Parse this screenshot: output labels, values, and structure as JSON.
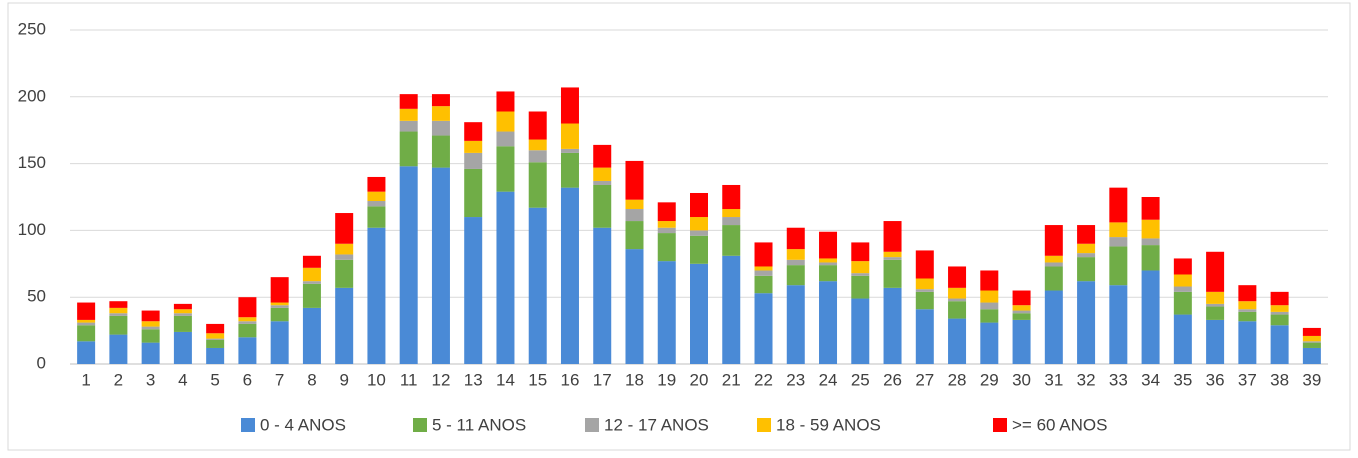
{
  "chart_data": {
    "type": "stacked_bar",
    "categories": [
      1,
      2,
      3,
      4,
      5,
      6,
      7,
      8,
      9,
      10,
      11,
      12,
      13,
      14,
      15,
      16,
      17,
      18,
      19,
      20,
      21,
      22,
      23,
      24,
      25,
      26,
      27,
      28,
      29,
      30,
      31,
      32,
      33,
      34,
      35,
      36,
      37,
      38,
      39
    ],
    "series": [
      {
        "name": "0 - 4 ANOS",
        "color": "#4a8ad6",
        "values": [
          17,
          22,
          16,
          24,
          12,
          20,
          32,
          42,
          57,
          102,
          148,
          147,
          110,
          129,
          117,
          132,
          102,
          86,
          77,
          75,
          81,
          53,
          59,
          62,
          49,
          57,
          41,
          34,
          31,
          33,
          55,
          62,
          59,
          70,
          37,
          33,
          32,
          29,
          12
        ]
      },
      {
        "name": "5 - 11 ANOS",
        "color": "#70ad47",
        "values": [
          12,
          14,
          10,
          12,
          6,
          10,
          10,
          18,
          21,
          16,
          26,
          24,
          36,
          34,
          34,
          26,
          32,
          21,
          21,
          21,
          23,
          13,
          15,
          12,
          17,
          21,
          13,
          13,
          10,
          5,
          18,
          18,
          29,
          19,
          17,
          10,
          7,
          8,
          4
        ]
      },
      {
        "name": "12 - 17 ANOS",
        "color": "#a5a5a5",
        "values": [
          2,
          2,
          2,
          2,
          1,
          2,
          2,
          2,
          4,
          4,
          8,
          11,
          12,
          11,
          9,
          3,
          3,
          9,
          4,
          4,
          6,
          4,
          4,
          2,
          2,
          2,
          2,
          2,
          5,
          2,
          3,
          3,
          7,
          5,
          4,
          2,
          2,
          2,
          1
        ]
      },
      {
        "name": "18 - 59 ANOS",
        "color": "#ffc000",
        "values": [
          2,
          4,
          4,
          3,
          4,
          3,
          2,
          10,
          8,
          7,
          9,
          11,
          9,
          15,
          8,
          19,
          10,
          7,
          5,
          10,
          6,
          3,
          8,
          3,
          9,
          4,
          8,
          8,
          9,
          4,
          5,
          7,
          11,
          14,
          9,
          9,
          6,
          5,
          4
        ]
      },
      {
        "name": ">= 60 ANOS",
        "color": "#ff0000",
        "values": [
          13,
          5,
          8,
          4,
          7,
          15,
          19,
          9,
          23,
          11,
          11,
          9,
          14,
          15,
          21,
          27,
          17,
          29,
          14,
          18,
          18,
          18,
          16,
          20,
          14,
          23,
          21,
          16,
          15,
          11,
          23,
          14,
          26,
          17,
          12,
          30,
          12,
          10,
          6
        ]
      }
    ],
    "ylim": [
      0,
      250
    ],
    "yticks": [
      0,
      50,
      100,
      150,
      200,
      250
    ],
    "grid": true,
    "legend": "bottom"
  }
}
